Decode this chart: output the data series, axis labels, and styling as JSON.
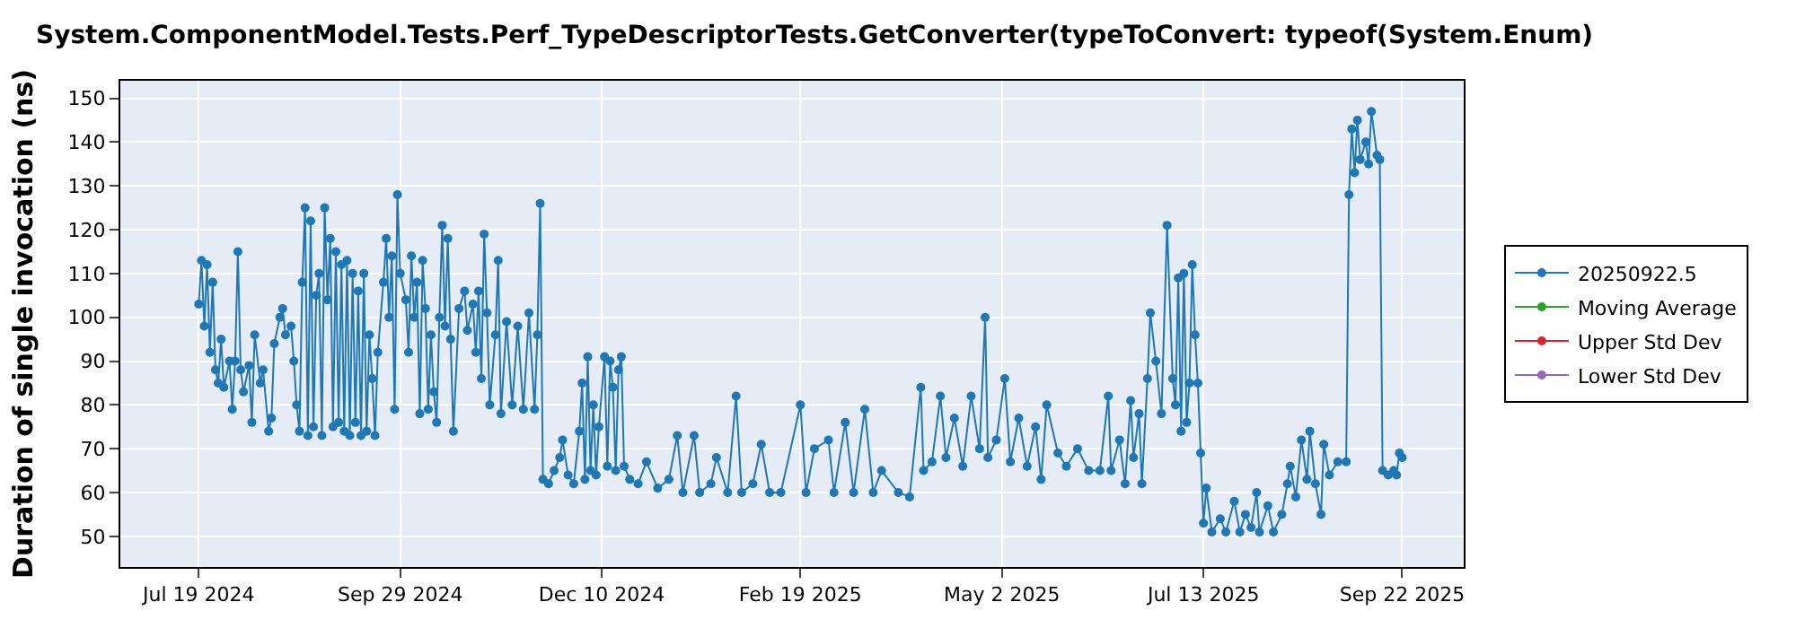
{
  "chart_data": {
    "type": "line",
    "title": "System.ComponentModel.Tests.Perf_TypeDescriptorTests.GetConverter(typeToConvert: typeof(System.Enum)",
    "ylabel": "Duration of single invocation (ns)",
    "xlim": [
      "2024-06-21",
      "2025-10-14"
    ],
    "ylim": [
      43,
      154
    ],
    "xticks": [
      {
        "value": "2024-07-19",
        "label": "Jul 19 2024"
      },
      {
        "value": "2024-09-29",
        "label": "Sep 29 2024"
      },
      {
        "value": "2024-12-10",
        "label": "Dec 10 2024"
      },
      {
        "value": "2025-02-19",
        "label": "Feb 19 2025"
      },
      {
        "value": "2025-05-02",
        "label": "May 2 2025"
      },
      {
        "value": "2025-07-13",
        "label": "Jul 13 2025"
      },
      {
        "value": "2025-09-22",
        "label": "Sep 22 2025"
      }
    ],
    "yticks": [
      50,
      60,
      70,
      80,
      90,
      100,
      110,
      120,
      130,
      140,
      150
    ],
    "grid": true,
    "legend": "right",
    "marker": "circle",
    "line_style": "solid",
    "series": [
      {
        "name": "20250922.5",
        "color": "#1f77b4",
        "x": [
          "2024-07-19",
          "2024-07-20",
          "2024-07-21",
          "2024-07-22",
          "2024-07-23",
          "2024-07-24",
          "2024-07-25",
          "2024-07-26",
          "2024-07-27",
          "2024-07-28",
          "2024-07-30",
          "2024-07-31",
          "2024-08-01",
          "2024-08-02",
          "2024-08-03",
          "2024-08-04",
          "2024-08-06",
          "2024-08-07",
          "2024-08-08",
          "2024-08-10",
          "2024-08-11",
          "2024-08-13",
          "2024-08-14",
          "2024-08-15",
          "2024-08-17",
          "2024-08-18",
          "2024-08-19",
          "2024-08-21",
          "2024-08-22",
          "2024-08-23",
          "2024-08-24",
          "2024-08-25",
          "2024-08-26",
          "2024-08-27",
          "2024-08-28",
          "2024-08-29",
          "2024-08-30",
          "2024-08-31",
          "2024-09-01",
          "2024-09-02",
          "2024-09-03",
          "2024-09-04",
          "2024-09-05",
          "2024-09-06",
          "2024-09-07",
          "2024-09-08",
          "2024-09-09",
          "2024-09-10",
          "2024-09-11",
          "2024-09-12",
          "2024-09-13",
          "2024-09-14",
          "2024-09-15",
          "2024-09-16",
          "2024-09-17",
          "2024-09-18",
          "2024-09-19",
          "2024-09-20",
          "2024-09-21",
          "2024-09-23",
          "2024-09-24",
          "2024-09-25",
          "2024-09-26",
          "2024-09-27",
          "2024-09-28",
          "2024-09-29",
          "2024-10-01",
          "2024-10-02",
          "2024-10-03",
          "2024-10-04",
          "2024-10-05",
          "2024-10-06",
          "2024-10-07",
          "2024-10-08",
          "2024-10-09",
          "2024-10-10",
          "2024-10-11",
          "2024-10-12",
          "2024-10-13",
          "2024-10-14",
          "2024-10-15",
          "2024-10-16",
          "2024-10-17",
          "2024-10-18",
          "2024-10-20",
          "2024-10-22",
          "2024-10-23",
          "2024-10-25",
          "2024-10-26",
          "2024-10-27",
          "2024-10-28",
          "2024-10-29",
          "2024-10-30",
          "2024-10-31",
          "2024-11-02",
          "2024-11-03",
          "2024-11-04",
          "2024-11-06",
          "2024-11-08",
          "2024-11-10",
          "2024-11-12",
          "2024-11-14",
          "2024-11-16",
          "2024-11-17",
          "2024-11-18",
          "2024-11-19",
          "2024-11-21",
          "2024-11-23",
          "2024-11-25",
          "2024-11-26",
          "2024-11-28",
          "2024-11-30",
          "2024-12-02",
          "2024-12-03",
          "2024-12-04",
          "2024-12-05",
          "2024-12-06",
          "2024-12-07",
          "2024-12-08",
          "2024-12-09",
          "2024-12-11",
          "2024-12-12",
          "2024-12-13",
          "2024-12-14",
          "2024-12-15",
          "2024-12-16",
          "2024-12-17",
          "2024-12-18",
          "2024-12-20",
          "2024-12-23",
          "2024-12-26",
          "2024-12-30",
          "2025-01-03",
          "2025-01-06",
          "2025-01-08",
          "2025-01-12",
          "2025-01-14",
          "2025-01-18",
          "2025-01-20",
          "2025-01-24",
          "2025-01-27",
          "2025-01-29",
          "2025-02-02",
          "2025-02-05",
          "2025-02-08",
          "2025-02-12",
          "2025-02-19",
          "2025-02-21",
          "2025-02-24",
          "2025-03-01",
          "2025-03-03",
          "2025-03-07",
          "2025-03-10",
          "2025-03-14",
          "2025-03-17",
          "2025-03-20",
          "2025-03-26",
          "2025-03-30",
          "2025-04-03",
          "2025-04-04",
          "2025-04-07",
          "2025-04-10",
          "2025-04-12",
          "2025-04-15",
          "2025-04-18",
          "2025-04-21",
          "2025-04-24",
          "2025-04-26",
          "2025-04-27",
          "2025-04-30",
          "2025-05-03",
          "2025-05-05",
          "2025-05-08",
          "2025-05-11",
          "2025-05-14",
          "2025-05-16",
          "2025-05-18",
          "2025-05-22",
          "2025-05-25",
          "2025-05-29",
          "2025-06-02",
          "2025-06-06",
          "2025-06-09",
          "2025-06-10",
          "2025-06-13",
          "2025-06-15",
          "2025-06-17",
          "2025-06-18",
          "2025-06-20",
          "2025-06-21",
          "2025-06-23",
          "2025-06-24",
          "2025-06-26",
          "2025-06-28",
          "2025-06-30",
          "2025-07-02",
          "2025-07-03",
          "2025-07-04",
          "2025-07-05",
          "2025-07-06",
          "2025-07-07",
          "2025-07-08",
          "2025-07-09",
          "2025-07-10",
          "2025-07-11",
          "2025-07-12",
          "2025-07-13",
          "2025-07-14",
          "2025-07-16",
          "2025-07-19",
          "2025-07-21",
          "2025-07-24",
          "2025-07-26",
          "2025-07-28",
          "2025-07-30",
          "2025-08-01",
          "2025-08-02",
          "2025-08-05",
          "2025-08-07",
          "2025-08-10",
          "2025-08-12",
          "2025-08-13",
          "2025-08-15",
          "2025-08-17",
          "2025-08-19",
          "2025-08-20",
          "2025-08-22",
          "2025-08-24",
          "2025-08-25",
          "2025-08-27",
          "2025-08-30",
          "2025-09-02",
          "2025-09-03",
          "2025-09-04",
          "2025-09-05",
          "2025-09-06",
          "2025-09-07",
          "2025-09-09",
          "2025-09-10",
          "2025-09-11",
          "2025-09-13",
          "2025-09-14",
          "2025-09-15",
          "2025-09-17",
          "2025-09-19",
          "2025-09-20",
          "2025-09-21",
          "2025-09-22"
        ],
        "values": [
          103,
          113,
          98,
          112,
          92,
          108,
          88,
          85,
          95,
          84,
          90,
          79,
          90,
          115,
          88,
          83,
          89,
          76,
          96,
          85,
          88,
          74,
          77,
          94,
          100,
          102,
          96,
          98,
          90,
          80,
          74,
          108,
          125,
          73,
          122,
          75,
          105,
          110,
          73,
          125,
          104,
          118,
          75,
          115,
          76,
          112,
          74,
          113,
          73,
          110,
          76,
          106,
          73,
          110,
          74,
          96,
          86,
          73,
          92,
          108,
          118,
          100,
          114,
          79,
          128,
          110,
          104,
          92,
          114,
          100,
          108,
          78,
          113,
          102,
          79,
          96,
          83,
          76,
          100,
          121,
          98,
          118,
          95,
          74,
          102,
          106,
          97,
          103,
          92,
          106,
          86,
          119,
          101,
          80,
          96,
          113,
          78,
          99,
          80,
          98,
          79,
          101,
          79,
          96,
          126,
          63,
          62,
          65,
          68,
          72,
          64,
          62,
          74,
          85,
          63,
          91,
          65,
          80,
          64,
          75,
          91,
          66,
          90,
          84,
          65,
          88,
          91,
          66,
          63,
          62,
          67,
          61,
          63,
          73,
          60,
          73,
          60,
          62,
          68,
          60,
          82,
          60,
          62,
          71,
          60,
          60,
          80,
          60,
          70,
          72,
          60,
          76,
          60,
          79,
          60,
          65,
          60,
          59,
          84,
          65,
          67,
          82,
          68,
          77,
          66,
          82,
          70,
          100,
          68,
          72,
          86,
          67,
          77,
          66,
          75,
          63,
          80,
          69,
          66,
          70,
          65,
          65,
          82,
          65,
          72,
          62,
          81,
          68,
          78,
          62,
          86,
          101,
          90,
          78,
          121,
          86,
          80,
          109,
          74,
          110,
          76,
          85,
          112,
          96,
          85,
          69,
          53,
          61,
          51,
          54,
          51,
          58,
          51,
          55,
          52,
          60,
          51,
          57,
          51,
          55,
          62,
          66,
          59,
          72,
          63,
          74,
          62,
          55,
          71,
          64,
          67,
          67,
          128,
          143,
          133,
          145,
          136,
          140,
          135,
          147,
          137,
          136,
          65,
          64,
          65,
          64,
          69,
          68
        ]
      },
      {
        "name": "Moving Average",
        "color": "#2ca02c"
      },
      {
        "name": "Upper Std Dev",
        "color": "#d62728"
      },
      {
        "name": "Lower Std Dev",
        "color": "#9467bd"
      }
    ]
  }
}
